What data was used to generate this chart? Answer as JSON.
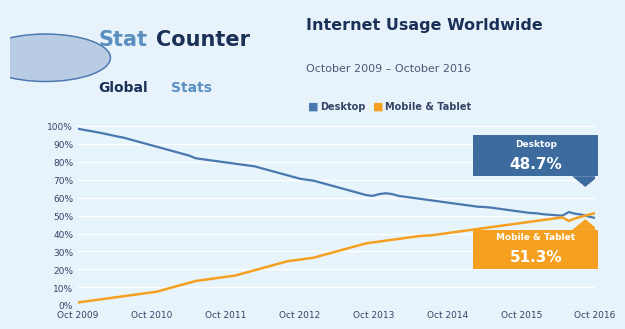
{
  "title": "Internet Usage Worldwide",
  "subtitle": "October 2009 – October 2016",
  "legend_desktop": "Desktop",
  "legend_mobile": "Mobile & Tablet",
  "desktop_label": "Desktop",
  "desktop_value": "48.7%",
  "mobile_label": "Mobile & Tablet",
  "mobile_value": "51.3%",
  "desktop_color": "#4a78b0",
  "mobile_color": "#f5a020",
  "desktop_box_color": "#3d6b9e",
  "mobile_box_color": "#f5a020",
  "bg_color": "#e8f2fb",
  "plot_bg_color": "#e8f4fb",
  "grid_color": "#ffffff",
  "tick_color": "#334466",
  "title_color": "#1a3056",
  "subtitle_color": "#4a5a7a",
  "x_ticks": [
    "Oct 2009",
    "Oct 2010",
    "Oct 2011",
    "Oct 2012",
    "Oct 2013",
    "Oct 2014",
    "Oct 2015",
    "Oct 2016"
  ],
  "y_ticks": [
    "0%",
    "10%",
    "20%",
    "30%",
    "40%",
    "50%",
    "60%",
    "70%",
    "80%",
    "90%",
    "100%"
  ],
  "desktop_data": [
    98.5,
    97.8,
    97.2,
    96.5,
    95.8,
    95.0,
    94.2,
    93.5,
    92.5,
    91.5,
    90.5,
    89.5,
    88.5,
    87.5,
    86.5,
    85.5,
    84.5,
    83.5,
    82.0,
    81.5,
    81.0,
    80.5,
    80.0,
    79.5,
    79.0,
    78.5,
    78.0,
    77.5,
    76.5,
    75.5,
    74.5,
    73.5,
    72.5,
    71.5,
    70.5,
    70.0,
    69.5,
    68.5,
    67.5,
    66.5,
    65.5,
    64.5,
    63.5,
    62.5,
    61.5,
    61.0,
    62.0,
    62.5,
    62.0,
    61.0,
    60.5,
    60.0,
    59.5,
    59.0,
    58.5,
    58.0,
    57.5,
    57.0,
    56.5,
    56.0,
    55.5,
    55.0,
    54.8,
    54.5,
    54.0,
    53.5,
    53.0,
    52.5,
    52.0,
    51.5,
    51.3,
    50.8,
    50.5,
    50.2,
    50.0,
    52.0,
    51.0,
    50.5,
    49.5,
    48.7
  ],
  "mobile_data": [
    1.5,
    2.0,
    2.5,
    3.0,
    3.5,
    4.0,
    4.5,
    5.0,
    5.5,
    6.0,
    6.5,
    7.0,
    7.5,
    8.5,
    9.5,
    10.5,
    11.5,
    12.5,
    13.5,
    14.0,
    14.5,
    15.0,
    15.5,
    16.0,
    16.5,
    17.5,
    18.5,
    19.5,
    20.5,
    21.5,
    22.5,
    23.5,
    24.5,
    25.0,
    25.5,
    26.0,
    26.5,
    27.5,
    28.5,
    29.5,
    30.5,
    31.5,
    32.5,
    33.5,
    34.5,
    35.0,
    35.5,
    36.0,
    36.5,
    37.0,
    37.5,
    38.0,
    38.5,
    38.8,
    39.0,
    39.5,
    40.0,
    40.5,
    41.0,
    41.5,
    42.0,
    42.5,
    43.0,
    43.5,
    44.0,
    44.5,
    45.0,
    45.5,
    46.0,
    46.5,
    47.0,
    47.5,
    48.0,
    48.5,
    49.0,
    47.0,
    48.5,
    49.5,
    50.5,
    51.3
  ]
}
